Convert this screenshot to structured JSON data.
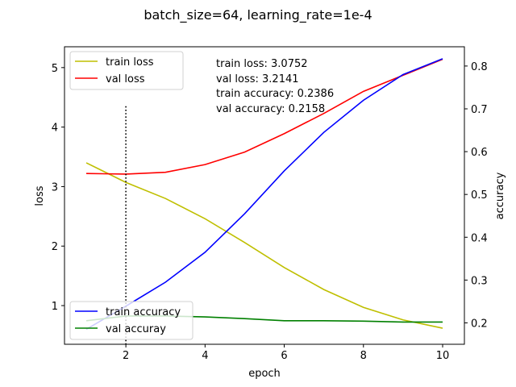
{
  "chart_data": {
    "type": "line",
    "title": "batch_size=64, learning_rate=1e-4",
    "xlabel": "epoch",
    "ylabel_left": "loss",
    "ylabel_right": "accuracy",
    "xlim": [
      0.45,
      10.55
    ],
    "ylim_left": [
      0.35,
      5.35
    ],
    "ylim_right": [
      0.15,
      0.845
    ],
    "x_ticks": [
      2,
      4,
      6,
      8,
      10
    ],
    "y_ticks_left": [
      1,
      2,
      3,
      4,
      5
    ],
    "y_ticks_right": [
      0.2,
      0.3,
      0.4,
      0.5,
      0.6,
      0.7,
      0.8
    ],
    "x": [
      1,
      2,
      3,
      4,
      5,
      6,
      7,
      8,
      9,
      10
    ],
    "series_left": [
      {
        "name": "train loss",
        "color": "#bfbf00",
        "values": [
          3.4,
          3.07,
          2.8,
          2.46,
          2.06,
          1.64,
          1.27,
          0.97,
          0.76,
          0.62
        ]
      },
      {
        "name": "val loss",
        "color": "#ff0000",
        "values": [
          3.22,
          3.21,
          3.24,
          3.37,
          3.58,
          3.89,
          4.23,
          4.6,
          4.87,
          5.14
        ]
      }
    ],
    "series_right": [
      {
        "name": "train accuracy",
        "color": "#0000ff",
        "values": [
          0.185,
          0.239,
          0.295,
          0.365,
          0.455,
          0.555,
          0.645,
          0.72,
          0.78,
          0.817
        ]
      },
      {
        "name": "val accuray",
        "color": "#008000",
        "values": [
          0.205,
          0.216,
          0.216,
          0.214,
          0.21,
          0.205,
          0.205,
          0.204,
          0.202,
          0.202
        ]
      }
    ],
    "vline": {
      "x": 2,
      "y_top_left": 4.35,
      "y_bottom_left": 0.35,
      "style": "dotted",
      "color": "#000000"
    },
    "annotations": [
      "train loss: 3.0752",
      "val loss: 3.2141",
      "train accuracy: 0.2386",
      "val accuracy: 0.2158"
    ],
    "legend_left": {
      "placement": "upper-left",
      "entries": [
        {
          "name": "train loss",
          "color": "#bfbf00"
        },
        {
          "name": "val loss",
          "color": "#ff0000"
        }
      ]
    },
    "legend_right": {
      "placement": "lower-left",
      "entries": [
        {
          "name": "train accuracy",
          "color": "#0000ff"
        },
        {
          "name": "val accuray",
          "color": "#008000"
        }
      ]
    },
    "grid": false
  }
}
